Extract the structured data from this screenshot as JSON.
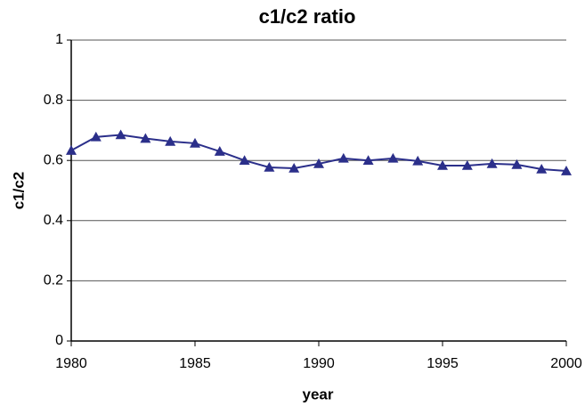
{
  "chart_data": {
    "type": "line",
    "title": "c1/c2 ratio",
    "x_label": "year",
    "y_label": "c1/c2",
    "x": [
      1980,
      1981,
      1982,
      1983,
      1984,
      1985,
      1986,
      1987,
      1988,
      1989,
      1990,
      1991,
      1992,
      1993,
      1994,
      1995,
      1996,
      1997,
      1998,
      1999,
      2000
    ],
    "values": [
      0.633,
      0.678,
      0.685,
      0.673,
      0.663,
      0.657,
      0.63,
      0.6,
      0.577,
      0.574,
      0.589,
      0.607,
      0.6,
      0.607,
      0.598,
      0.583,
      0.583,
      0.589,
      0.586,
      0.571,
      0.565
    ],
    "color": "#2b2f8a",
    "marker": "triangle",
    "xlim": [
      1980,
      2000
    ],
    "xticks": [
      1980,
      1985,
      1990,
      1995,
      2000
    ],
    "ylim": [
      0,
      1
    ],
    "yticks": [
      0,
      0.2,
      0.4,
      0.6,
      0.8,
      1
    ],
    "grid": true
  }
}
